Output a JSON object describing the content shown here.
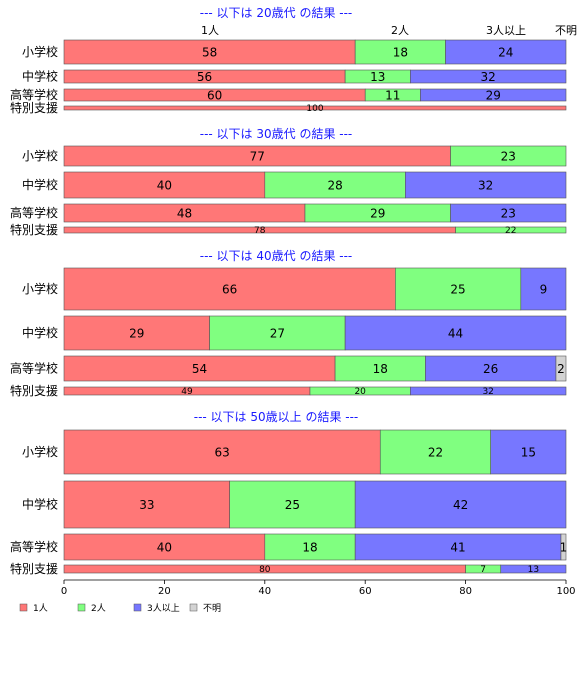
{
  "chart_data": {
    "type": "bar",
    "orientation": "horizontal",
    "stacked": true,
    "xlim": [
      0,
      100
    ],
    "x_ticks": [
      "0",
      "20",
      "40",
      "60",
      "80",
      "100"
    ],
    "series": [
      {
        "name": "1人",
        "color": "#ff7777"
      },
      {
        "name": "2人",
        "color": "#80ff80"
      },
      {
        "name": "3人以上",
        "color": "#7777ff"
      },
      {
        "name": "不明",
        "color": "#d3d3d3"
      }
    ],
    "column_headers": [
      "1人",
      "2人",
      "3人以上",
      "不明"
    ],
    "groups": [
      {
        "title": "--- 以下は 20歳代 の結果 ---",
        "categories": [
          {
            "label": "小学校",
            "values": [
              58,
              18,
              24,
              0
            ]
          },
          {
            "label": "中学校",
            "values": [
              56,
              13,
              32,
              0
            ]
          },
          {
            "label": "高等学校",
            "values": [
              60,
              11,
              29,
              0
            ]
          },
          {
            "label": "特別支援",
            "values": [
              100,
              0,
              0,
              0
            ]
          }
        ]
      },
      {
        "title": "--- 以下は 30歳代 の結果 ---",
        "categories": [
          {
            "label": "小学校",
            "values": [
              77,
              23,
              0,
              0
            ]
          },
          {
            "label": "中学校",
            "values": [
              40,
              28,
              32,
              0
            ]
          },
          {
            "label": "高等学校",
            "values": [
              48,
              29,
              23,
              0
            ]
          },
          {
            "label": "特別支援",
            "values": [
              78,
              22,
              0,
              0
            ]
          }
        ]
      },
      {
        "title": "--- 以下は 40歳代 の結果 ---",
        "categories": [
          {
            "label": "小学校",
            "values": [
              66,
              25,
              9,
              0
            ]
          },
          {
            "label": "中学校",
            "values": [
              29,
              27,
              44,
              0
            ]
          },
          {
            "label": "高等学校",
            "values": [
              54,
              18,
              26,
              2
            ]
          },
          {
            "label": "特別支援",
            "values": [
              49,
              20,
              32,
              0
            ]
          }
        ]
      },
      {
        "title": "--- 以下は 50歳以上 の結果 ---",
        "categories": [
          {
            "label": "小学校",
            "values": [
              63,
              22,
              15,
              0
            ]
          },
          {
            "label": "中学校",
            "values": [
              33,
              25,
              42,
              0
            ]
          },
          {
            "label": "高等学校",
            "values": [
              40,
              18,
              41,
              1
            ]
          },
          {
            "label": "特別支援",
            "values": [
              80,
              7,
              13,
              0
            ]
          }
        ]
      }
    ]
  }
}
